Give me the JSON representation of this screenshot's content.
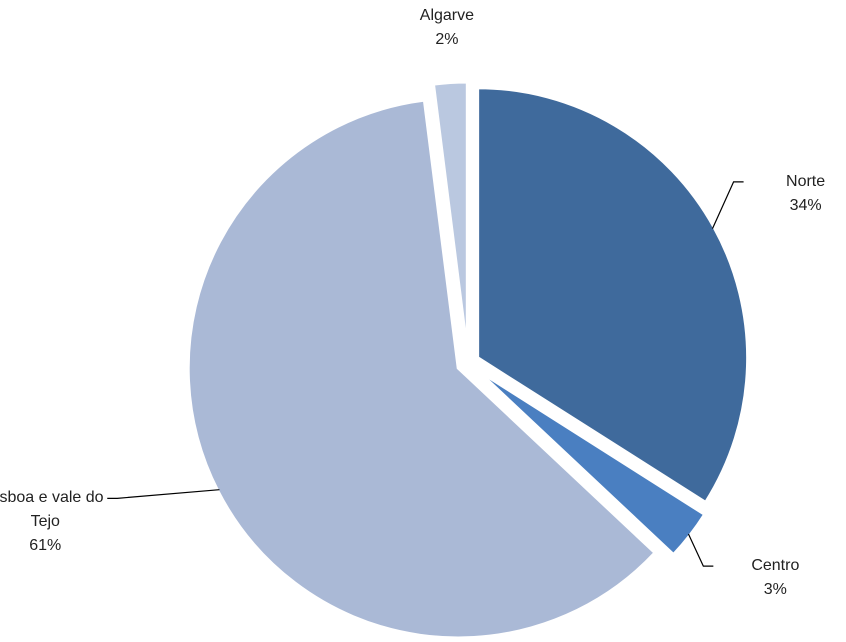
{
  "chart_data": {
    "type": "pie",
    "categories": [
      "Norte",
      "Centro",
      "Lisboa e vale do Tejo",
      "Algarve"
    ],
    "values": [
      34,
      3,
      61,
      2
    ],
    "value_labels": [
      "34%",
      "3%",
      "61%",
      "2%"
    ],
    "colors": [
      "#3f6a9c",
      "#4a7fc1",
      "#aab9d6",
      "#bac8e0"
    ]
  }
}
